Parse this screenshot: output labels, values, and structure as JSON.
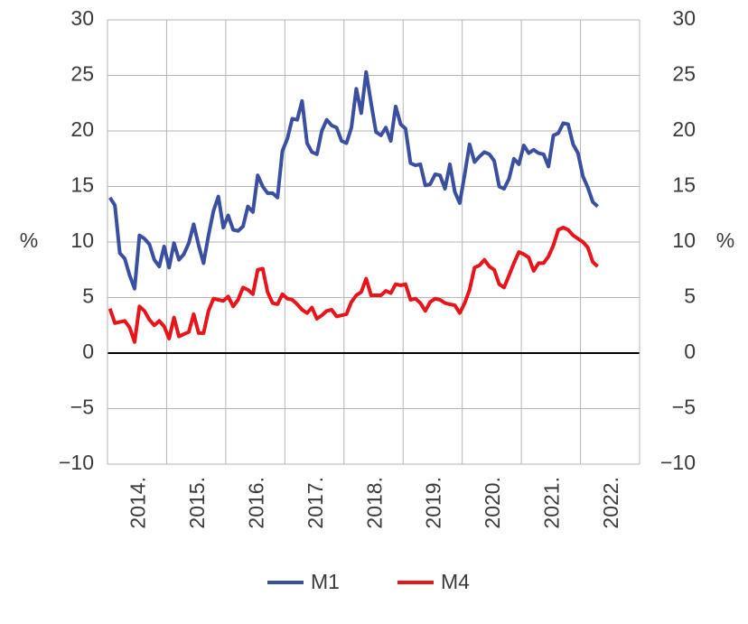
{
  "chart_data": {
    "type": "line",
    "y_label": "%",
    "y2_label": "%",
    "categories": [
      null,
      null,
      null,
      null,
      null,
      null,
      "2014.",
      null,
      null,
      null,
      null,
      null,
      null,
      null,
      null,
      null,
      null,
      null,
      "2015.",
      null,
      null,
      null,
      null,
      null,
      null,
      null,
      null,
      null,
      null,
      null,
      "2016.",
      null,
      null,
      null,
      null,
      null,
      null,
      null,
      null,
      null,
      null,
      null,
      "2017.",
      null,
      null,
      null,
      null,
      null,
      null,
      null,
      null,
      null,
      null,
      null,
      "2018.",
      null,
      null,
      null,
      null,
      null,
      null,
      null,
      null,
      null,
      null,
      null,
      "2019.",
      null,
      null,
      null,
      null,
      null,
      null,
      null,
      null,
      null,
      null,
      null,
      "2020.",
      null,
      null,
      null,
      null,
      null,
      null,
      null,
      null,
      null,
      null,
      null,
      "2021.",
      null,
      null,
      null,
      null,
      null,
      null,
      null,
      null,
      null,
      null,
      null,
      "2022.",
      null,
      null,
      null,
      null,
      null
    ],
    "series": [
      {
        "name": "M1",
        "color": "#3a4fa0",
        "values": [
          14,
          13.3,
          9,
          8.5,
          7,
          5.8,
          10.6,
          10.3,
          9.8,
          8.4,
          7.8,
          9.6,
          7.7,
          9.9,
          8.4,
          8.9,
          9.9,
          11.6,
          9.7,
          8.1,
          10.6,
          12.8,
          14.1,
          11.3,
          12.4,
          11.1,
          11.0,
          11.4,
          13.2,
          12.7,
          16.0,
          15.0,
          14.4,
          14.4,
          14.0,
          18.2,
          19.3,
          21.1,
          21.0,
          22.7,
          18.9,
          18.1,
          17.9,
          20.0,
          21.0,
          20.5,
          20.3,
          19.1,
          18.9,
          20.3,
          23.8,
          21.6,
          25.3,
          22.5,
          19.9,
          19.6,
          20.3,
          19.1,
          22.2,
          20.6,
          20.2,
          17.1,
          16.9,
          17.0,
          15.1,
          15.2,
          16.1,
          16.0,
          14.8,
          17.0,
          14.5,
          13.5,
          16.1,
          18.8,
          17.2,
          17.7,
          18.1,
          17.9,
          17.3,
          15.0,
          14.8,
          15.7,
          17.5,
          17.0,
          18.7,
          18.0,
          18.3,
          18.0,
          17.9,
          16.8,
          19.6,
          19.8,
          20.7,
          20.6,
          18.8,
          18.0,
          15.9,
          14.9,
          13.6,
          13.2,
          null,
          null,
          null,
          null,
          null,
          null,
          null,
          null
        ]
      },
      {
        "name": "M4",
        "color": "#e8141a",
        "values": [
          4.0,
          2.7,
          2.8,
          2.9,
          2.3,
          1.0,
          4.2,
          3.8,
          3.0,
          2.5,
          2.9,
          2.4,
          1.3,
          3.2,
          1.5,
          1.7,
          1.9,
          3.5,
          1.8,
          1.8,
          3.8,
          4.9,
          4.8,
          4.7,
          5.1,
          4.2,
          4.8,
          5.9,
          5.7,
          5.3,
          7.5,
          7.6,
          5.5,
          4.5,
          4.4,
          5.3,
          4.9,
          4.8,
          4.4,
          3.9,
          3.6,
          4.1,
          3.1,
          3.4,
          3.8,
          3.9,
          3.3,
          3.4,
          3.5,
          4.6,
          5.2,
          5.5,
          6.7,
          5.2,
          5.2,
          5.2,
          5.6,
          5.4,
          6.2,
          6.1,
          6.2,
          4.8,
          4.9,
          4.5,
          3.8,
          4.6,
          4.9,
          4.8,
          4.5,
          4.4,
          4.3,
          3.6,
          4.5,
          5.7,
          7.7,
          7.9,
          8.4,
          7.8,
          7.5,
          6.2,
          5.9,
          7.0,
          8.1,
          9.1,
          8.9,
          8.6,
          7.4,
          8.1,
          8.1,
          8.7,
          9.7,
          11.1,
          11.3,
          11.1,
          10.6,
          10.3,
          10.0,
          9.5,
          8.2,
          7.8,
          null,
          null,
          null,
          null,
          null,
          null,
          null,
          null
        ]
      }
    ],
    "ylim": [
      -10,
      30
    ],
    "yticks": [
      {
        "value": -10,
        "label": "−10"
      },
      {
        "value": -5,
        "label": "−5"
      },
      0,
      5,
      10,
      15,
      20,
      25,
      30
    ],
    "y2lim": [
      -10,
      30
    ],
    "y2ticks": [
      {
        "value": -10,
        "label": "−10"
      },
      {
        "value": -5,
        "label": "−5"
      },
      0,
      5,
      10,
      15,
      20,
      25,
      30
    ],
    "grid": true,
    "legend": "bottom"
  }
}
